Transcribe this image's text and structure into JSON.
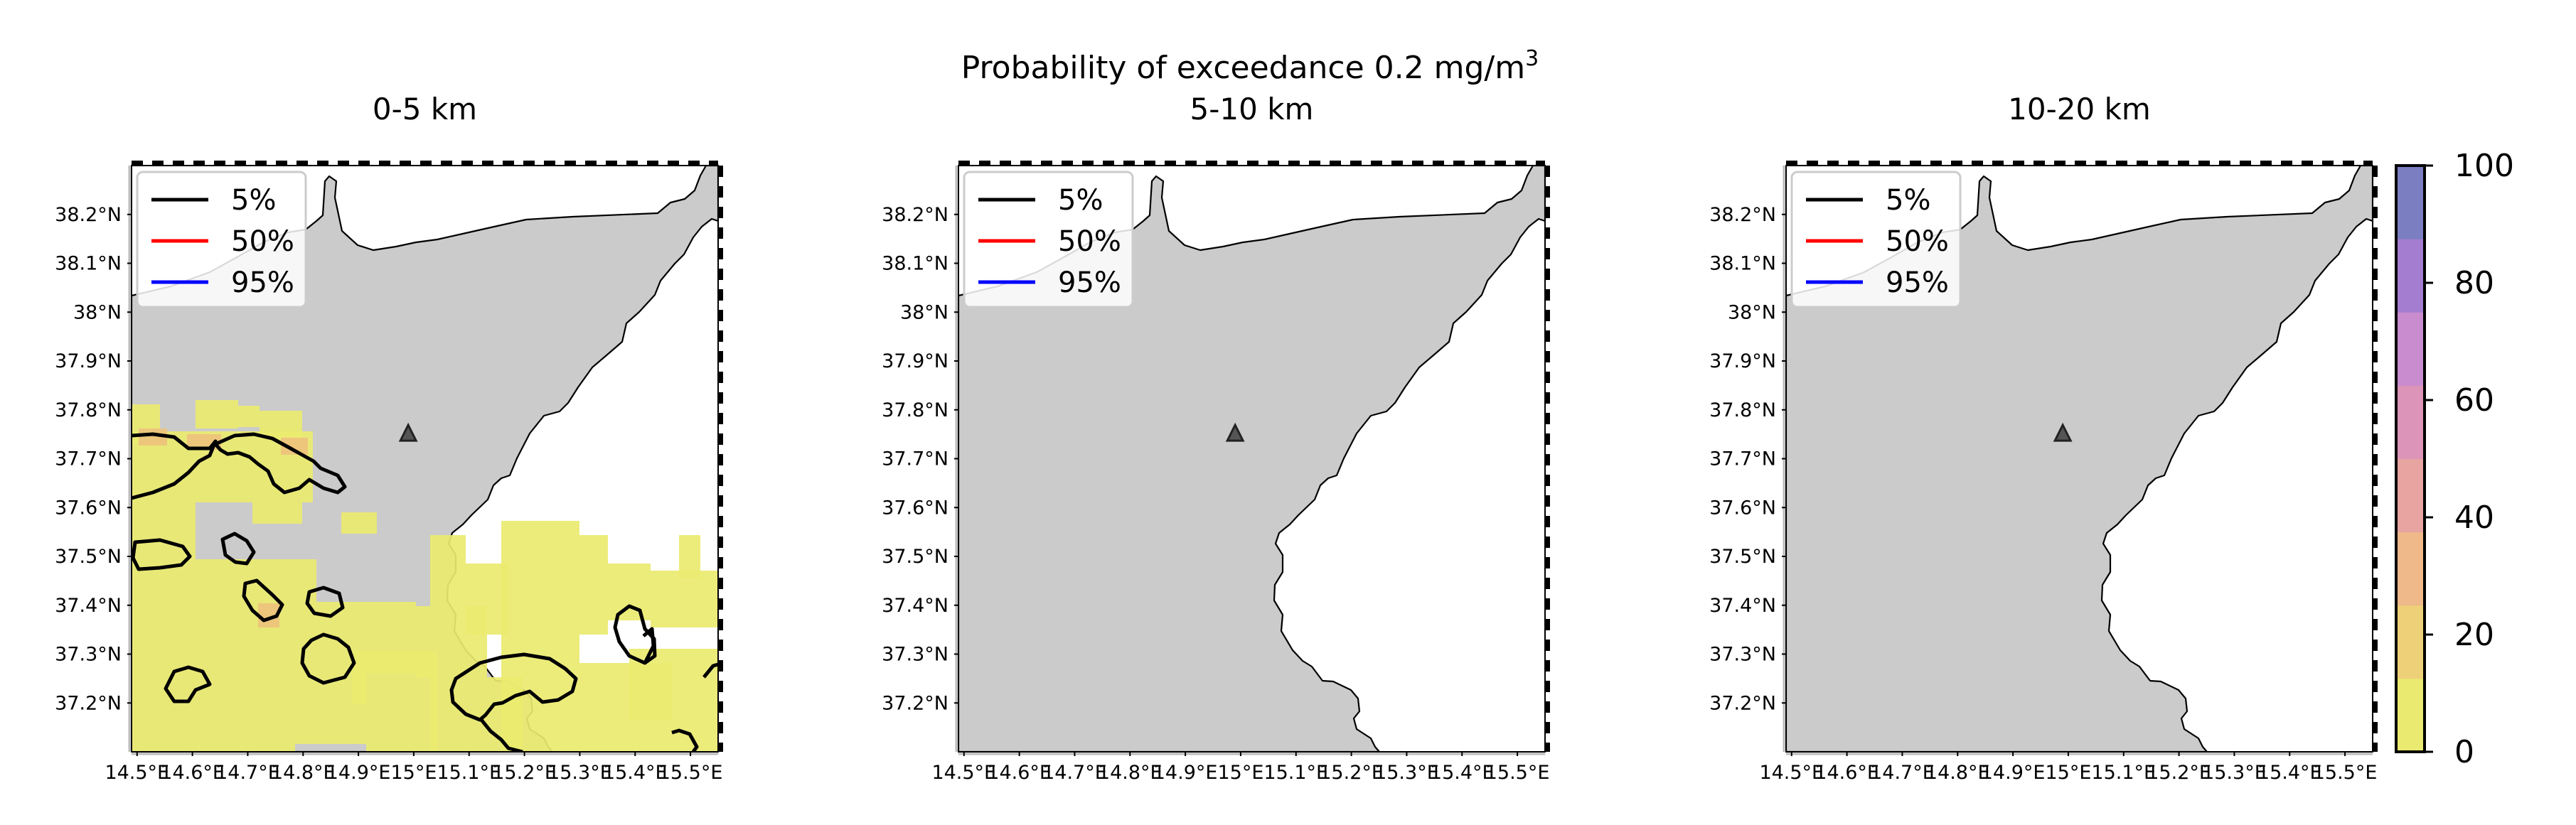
{
  "title": "Probability of exceedance 0.2 mg/m",
  "title_superscript": "3",
  "panels": [
    {
      "title": "0-5 km",
      "has_plume": true
    },
    {
      "title": "5-10 km",
      "has_plume": false
    },
    {
      "title": "10-20 km",
      "has_plume": false
    }
  ],
  "axes": {
    "x_ticks": [
      "14.5°E",
      "14.6°E",
      "14.7°E",
      "14.8°E",
      "14.9°E",
      "15°E",
      "15.1°E",
      "15.2°E",
      "15.3°E",
      "15.4°E",
      "15.5°E"
    ],
    "y_ticks": [
      "38.2°N",
      "38.1°N",
      "38°N",
      "37.9°N",
      "37.8°N",
      "37.7°N",
      "37.6°N",
      "37.5°N",
      "37.4°N",
      "37.3°N",
      "37.2°N"
    ],
    "xlim": [
      14.49,
      15.55
    ],
    "ylim": [
      37.1,
      38.3
    ]
  },
  "legend": {
    "placement": "upper-left",
    "entries": [
      {
        "label": "5%",
        "color": "#000000"
      },
      {
        "label": "50%",
        "color": "#ff0000"
      },
      {
        "label": "95%",
        "color": "#0000ff"
      }
    ]
  },
  "colorbar": {
    "ticks": [
      "0",
      "20",
      "40",
      "60",
      "80",
      "100"
    ],
    "range": [
      0,
      100
    ],
    "colors": [
      "#eaea70",
      "#eed078",
      "#efb98a",
      "#e8a4a0",
      "#dc94b8",
      "#c88ccf",
      "#a47cd0",
      "#7c7ec2"
    ]
  },
  "volcano": {
    "lon": 14.99,
    "lat": 37.75,
    "symbol": "triangle"
  },
  "chart_data": {
    "type": "heatmap",
    "title": "Probability of exceedance 0.2 mg/m3",
    "panels": [
      "0-5 km",
      "5-10 km",
      "10-20 km"
    ],
    "variable": "probability of exceedance (%)",
    "colorbar_range": [
      0,
      100
    ],
    "contour_levels": [
      "5%",
      "50%",
      "95%"
    ],
    "xlim": [
      14.49,
      15.55
    ],
    "ylim": [
      37.1,
      38.3
    ],
    "summary": [
      {
        "panel": "0-5 km",
        "max_probability_percent": 20
      },
      {
        "panel": "5-10 km",
        "max_probability_percent": 0
      },
      {
        "panel": "10-20 km",
        "max_probability_percent": 0
      }
    ]
  }
}
